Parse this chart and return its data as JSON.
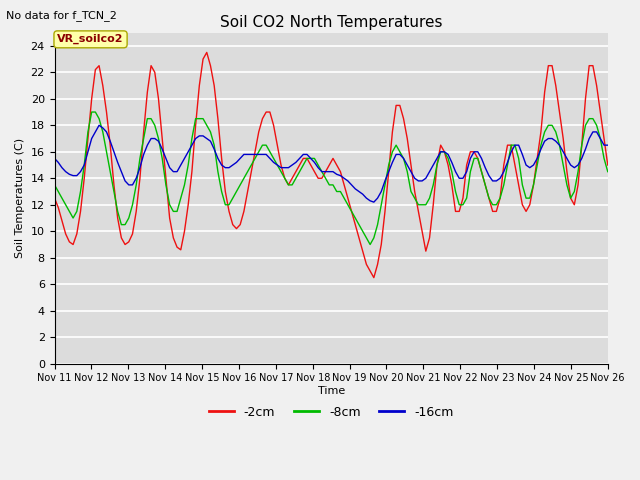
{
  "title": "Soil CO2 North Temperatures",
  "subtitle": "No data for f_TCN_2",
  "ylabel": "Soil Temperatures (C)",
  "xlabel": "Time",
  "legend_label": "VR_soilco2",
  "ylim": [
    0,
    25
  ],
  "yticks": [
    0,
    2,
    4,
    6,
    8,
    10,
    12,
    14,
    16,
    18,
    20,
    22,
    24
  ],
  "plot_bg": "#dcdcdc",
  "fig_bg": "#f0f0f0",
  "line_color_2cm": "#ee1111",
  "line_color_8cm": "#00bb00",
  "line_color_16cm": "#0000cc",
  "legend_items": [
    {
      "label": "-2cm",
      "color": "#ee1111"
    },
    {
      "label": "-8cm",
      "color": "#00bb00"
    },
    {
      "label": "-16cm",
      "color": "#0000cc"
    }
  ],
  "y_2cm": [
    12.5,
    11.8,
    10.8,
    9.8,
    9.2,
    9.0,
    9.8,
    11.5,
    14.0,
    17.0,
    20.0,
    22.2,
    22.5,
    21.0,
    19.0,
    16.5,
    13.5,
    11.0,
    9.5,
    9.0,
    9.2,
    9.8,
    11.5,
    14.0,
    17.5,
    20.5,
    22.5,
    22.0,
    20.0,
    17.0,
    14.0,
    11.0,
    9.5,
    8.8,
    8.6,
    10.0,
    12.0,
    14.5,
    18.0,
    21.0,
    23.0,
    23.5,
    22.5,
    21.0,
    18.5,
    15.5,
    13.0,
    11.5,
    10.5,
    10.2,
    10.5,
    11.5,
    13.0,
    14.5,
    16.0,
    17.5,
    18.5,
    19.0,
    19.0,
    18.0,
    16.5,
    15.0,
    14.0,
    13.5,
    14.0,
    14.5,
    15.0,
    15.5,
    15.5,
    15.0,
    14.5,
    14.0,
    14.0,
    14.5,
    15.0,
    15.5,
    15.0,
    14.5,
    13.5,
    12.5,
    11.5,
    10.5,
    9.5,
    8.5,
    7.5,
    7.0,
    6.5,
    7.5,
    9.0,
    11.5,
    14.5,
    17.5,
    19.5,
    19.5,
    18.5,
    17.0,
    15.0,
    13.0,
    11.5,
    10.0,
    8.5,
    9.5,
    12.0,
    15.0,
    16.5,
    16.0,
    15.0,
    13.5,
    11.5,
    11.5,
    12.5,
    15.0,
    16.0,
    16.0,
    15.5,
    14.5,
    13.5,
    12.5,
    11.5,
    11.5,
    12.5,
    15.0,
    16.5,
    16.5,
    15.0,
    13.5,
    12.0,
    11.5,
    12.0,
    13.5,
    15.5,
    17.5,
    20.5,
    22.5,
    22.5,
    21.0,
    19.0,
    17.0,
    14.5,
    12.5,
    12.0,
    13.5,
    16.5,
    20.0,
    22.5,
    22.5,
    21.0,
    19.0,
    17.0,
    15.0
  ],
  "y_8cm": [
    13.5,
    13.0,
    12.5,
    12.0,
    11.5,
    11.0,
    11.5,
    13.0,
    15.0,
    17.5,
    19.0,
    19.0,
    18.5,
    17.5,
    16.0,
    14.5,
    13.0,
    11.5,
    10.5,
    10.5,
    11.0,
    12.0,
    13.5,
    15.5,
    17.0,
    18.5,
    18.5,
    18.0,
    17.0,
    15.5,
    13.5,
    12.0,
    11.5,
    11.5,
    12.5,
    13.5,
    15.0,
    17.0,
    18.5,
    18.5,
    18.5,
    18.0,
    17.5,
    16.5,
    14.5,
    13.0,
    12.0,
    12.0,
    12.5,
    13.0,
    13.5,
    14.0,
    14.5,
    15.0,
    15.5,
    16.0,
    16.5,
    16.5,
    16.0,
    15.5,
    15.0,
    14.5,
    14.0,
    13.5,
    13.5,
    14.0,
    14.5,
    15.0,
    15.5,
    15.5,
    15.5,
    15.0,
    14.5,
    14.0,
    13.5,
    13.5,
    13.0,
    13.0,
    12.5,
    12.0,
    11.5,
    11.0,
    10.5,
    10.0,
    9.5,
    9.0,
    9.5,
    10.5,
    12.0,
    13.5,
    15.0,
    16.0,
    16.5,
    16.0,
    15.5,
    14.5,
    13.0,
    12.5,
    12.0,
    12.0,
    12.0,
    12.5,
    13.5,
    15.0,
    16.0,
    16.0,
    15.5,
    14.5,
    13.0,
    12.0,
    12.0,
    12.5,
    14.5,
    15.5,
    15.5,
    14.5,
    13.5,
    12.5,
    12.0,
    12.0,
    12.5,
    13.5,
    15.0,
    16.5,
    16.5,
    15.5,
    13.5,
    12.5,
    12.5,
    13.5,
    15.0,
    16.5,
    17.5,
    18.0,
    18.0,
    17.5,
    16.5,
    15.0,
    13.5,
    12.5,
    13.0,
    14.5,
    16.5,
    18.0,
    18.5,
    18.5,
    18.0,
    17.0,
    15.5,
    14.5
  ],
  "y_16cm": [
    15.5,
    15.2,
    14.8,
    14.5,
    14.3,
    14.2,
    14.2,
    14.5,
    15.0,
    16.0,
    17.0,
    17.5,
    18.0,
    17.8,
    17.5,
    16.8,
    16.0,
    15.2,
    14.5,
    13.8,
    13.5,
    13.5,
    14.0,
    14.8,
    15.8,
    16.5,
    17.0,
    17.0,
    16.8,
    16.2,
    15.5,
    14.8,
    14.5,
    14.5,
    15.0,
    15.5,
    16.0,
    16.5,
    17.0,
    17.2,
    17.2,
    17.0,
    16.8,
    16.2,
    15.5,
    15.0,
    14.8,
    14.8,
    15.0,
    15.2,
    15.5,
    15.8,
    15.8,
    15.8,
    15.8,
    15.8,
    15.8,
    15.8,
    15.5,
    15.2,
    15.0,
    14.8,
    14.8,
    14.8,
    15.0,
    15.2,
    15.5,
    15.8,
    15.8,
    15.5,
    15.2,
    14.8,
    14.5,
    14.5,
    14.5,
    14.5,
    14.3,
    14.2,
    14.0,
    13.8,
    13.5,
    13.2,
    13.0,
    12.8,
    12.5,
    12.3,
    12.2,
    12.5,
    13.0,
    13.8,
    14.5,
    15.2,
    15.8,
    15.8,
    15.5,
    15.0,
    14.5,
    14.0,
    13.8,
    13.8,
    14.0,
    14.5,
    15.0,
    15.5,
    16.0,
    16.0,
    15.8,
    15.2,
    14.5,
    14.0,
    14.0,
    14.5,
    15.5,
    16.0,
    16.0,
    15.5,
    14.8,
    14.2,
    13.8,
    13.8,
    14.0,
    14.5,
    15.2,
    16.0,
    16.5,
    16.5,
    15.8,
    15.0,
    14.8,
    15.0,
    15.5,
    16.2,
    16.8,
    17.0,
    17.0,
    16.8,
    16.5,
    16.0,
    15.5,
    15.0,
    14.8,
    15.0,
    15.5,
    16.2,
    17.0,
    17.5,
    17.5,
    17.0,
    16.5,
    16.5
  ]
}
